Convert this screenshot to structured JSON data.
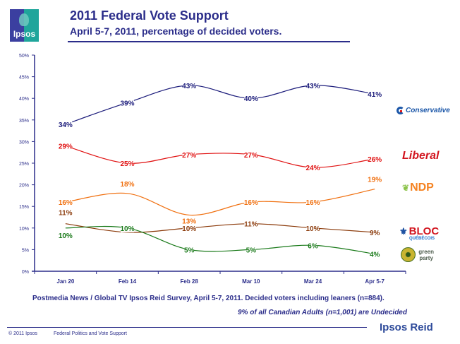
{
  "header": {
    "logo_text": "Ipsos",
    "title": "2011 Federal Vote Support",
    "subtitle": "April 5-7, 2011, percentage of decided voters."
  },
  "notes": {
    "source": "Postmedia News / Global TV Ipsos Reid Survey, April 5-7, 2011. Decided voters including leaners (n=884).",
    "undecided": "9% of all Canadian Adults (n=1,001) are Undecided"
  },
  "footer": {
    "copyright": "© 2011 Ipsos",
    "section": "Federal Politics and Vote Support",
    "brand": "Ipsos Reid"
  },
  "party_logos": {
    "conservative": "Conservative",
    "liberal": "Liberal",
    "ndp": "NDP",
    "bloc_top": "BLOC",
    "bloc_bottom": "QUÉBÉCOIS",
    "green_top": "green",
    "green_bottom": "party"
  },
  "chart_data": {
    "type": "line",
    "title": "2011 Federal Vote Support",
    "subtitle": "April 5-7, 2011, percentage of decided voters.",
    "xlabel": "",
    "ylabel": "",
    "categories": [
      "Jan 20",
      "Feb 14",
      "Feb 28",
      "Mar 10",
      "Mar 24",
      "Apr 5-7"
    ],
    "ylim": [
      0,
      50
    ],
    "yticks": [
      0,
      5,
      10,
      15,
      20,
      25,
      30,
      35,
      40,
      45,
      50
    ],
    "ytick_labels": [
      "0%",
      "5%",
      "10%",
      "15%",
      "20%",
      "25%",
      "30%",
      "35%",
      "40%",
      "45%",
      "50%"
    ],
    "grid": false,
    "legend": "right (party logos)",
    "series": [
      {
        "name": "Conservative",
        "color": "#1a1a7a",
        "values": [
          34,
          39,
          43,
          40,
          43,
          41
        ],
        "labels": [
          "34%",
          "39%",
          "43%",
          "40%",
          "43%",
          "41%"
        ]
      },
      {
        "name": "Liberal",
        "color": "#e01010",
        "values": [
          29,
          25,
          27,
          27,
          24,
          26
        ],
        "labels": [
          "29%",
          "25%",
          "27%",
          "27%",
          "24%",
          "26%"
        ]
      },
      {
        "name": "NDP",
        "color": "#f07010",
        "values": [
          16,
          18,
          13,
          16,
          16,
          19
        ],
        "labels": [
          "16%",
          "18%",
          "13%",
          "16%",
          "16%",
          "19%"
        ]
      },
      {
        "name": "Bloc Québécois",
        "color": "#8b3a0a",
        "values": [
          11,
          9,
          10,
          11,
          10,
          9
        ],
        "labels": [
          "11%",
          "",
          "10%",
          "11%",
          "10%",
          "9%"
        ]
      },
      {
        "name": "Green",
        "color": "#1a7a1a",
        "values": [
          10,
          10,
          5,
          5,
          6,
          4
        ],
        "labels": [
          "10%",
          "10%",
          "5%",
          "5%",
          "6%",
          "4%"
        ]
      }
    ]
  }
}
